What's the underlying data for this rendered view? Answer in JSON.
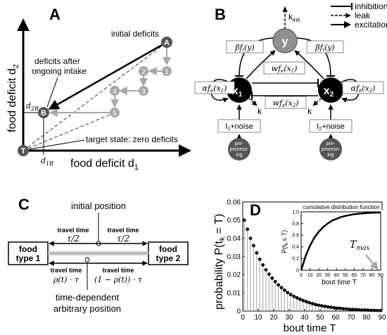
{
  "panels": {
    "A": {
      "label": "A",
      "y_axis": "food deficit d",
      "y_axis_sub": "2",
      "x_axis": "food deficit d",
      "x_axis_sub": "1",
      "initial_deficits": "initial deficits",
      "after_intake_1": "deficits after",
      "after_intake_2": "ongoing intake",
      "target_state": "target state: zero deficits",
      "point_A": "A",
      "point_B": "B",
      "point_T": "T",
      "d2B": "d",
      "d2B_sub": "2B",
      "d1B": "d",
      "d1B_sub": "1B",
      "steps": [
        "1",
        "2",
        "3",
        "4",
        "5"
      ]
    },
    "B": {
      "label": "B",
      "legend": [
        "inhibition",
        "leak",
        "excitation"
      ],
      "node_y": "y",
      "node_x1": "x",
      "node_x1_sub": "1",
      "node_x2": "x",
      "node_x2_sub": "2",
      "kinh": "k",
      "kinh_sub": "inh",
      "k_left": "k",
      "k_right": "k",
      "beta_left": "βf",
      "beta_left_arg": "(y)",
      "beta_right": "βf",
      "beta_right_arg": "(y)",
      "alpha_left": "αf",
      "alpha_left_arg": "(x",
      "alpha_right": "αf",
      "alpha_right_arg": "(x",
      "w_left": "wf",
      "w_left_arg": "(x",
      "w_right": "wf",
      "w_right_arg": "(x",
      "input1": "I",
      "input1_sub": "1",
      "input2": "I",
      "input2_sub": "2",
      "noise": "+noise",
      "preprocessing": [
        "pre-",
        "process-",
        "ing"
      ]
    },
    "C": {
      "label": "C",
      "initial_position": "initial position",
      "travel_time": "travel time",
      "tau_half": "τ/2",
      "food_type_1": [
        "food",
        "type 1"
      ],
      "food_type_2": [
        "food",
        "type 2"
      ],
      "rho_left": "ρ(t) · τ",
      "rho_right": "(1 − ρ(t)) · τ",
      "arbitrary_position": [
        "time-dependent",
        "arbitrary position"
      ]
    },
    "D": {
      "label": "D",
      "ylabel": "probability P(t",
      "ylabel_sub": "k",
      "ylabel_end": " = T)",
      "xlabel": "bout time T",
      "inset_title": "cumulative distribution function",
      "inset_ylabel": "P(t",
      "inset_ylabel_sub": "k",
      "inset_ylabel_end": " ≤ T)",
      "inset_xlabel": "bout time T",
      "tmax": "T",
      "tmax_sub": "max"
    }
  },
  "colors": {
    "dark_node": "#555555",
    "gray_step": "#a8a8a8",
    "stem": "#b0b0b0"
  },
  "chart_data": [
    {
      "type": "scatter",
      "title": "",
      "xlabel": "bout time T",
      "ylabel": "probability P(tk = T)",
      "xlim": [
        0,
        90
      ],
      "ylim": [
        0,
        0.06
      ],
      "xticks": [
        0,
        10,
        20,
        30,
        40,
        50,
        60,
        70,
        80,
        90
      ],
      "yticks": [
        0,
        0.01,
        0.02,
        0.03,
        0.04,
        0.05,
        0.06
      ],
      "x": [
        1,
        3,
        5,
        7,
        9,
        11,
        13,
        15,
        17,
        19,
        21,
        23,
        25,
        27,
        29,
        31,
        33,
        35,
        37,
        39,
        41,
        43,
        45,
        47,
        49,
        51,
        53,
        55,
        57,
        59,
        61,
        63,
        65,
        67,
        69,
        71,
        73,
        75,
        77,
        79,
        81,
        83,
        85,
        87,
        89,
        91
      ],
      "y": [
        0.05,
        0.045,
        0.04,
        0.036,
        0.032,
        0.0285,
        0.0254,
        0.0227,
        0.0203,
        0.0181,
        0.0162,
        0.0144,
        0.0129,
        0.0115,
        0.0102,
        0.0091,
        0.0081,
        0.0073,
        0.0065,
        0.0058,
        0.0052,
        0.0046,
        0.0041,
        0.0036,
        0.0032,
        0.0029,
        0.0026,
        0.0023,
        0.0021,
        0.0018,
        0.0016,
        0.0015,
        0.0013,
        0.0012,
        0.001,
        0.0009,
        0.0008,
        0.0007,
        0.0006,
        0.0006,
        0.0005,
        0.0004,
        0.0004,
        0.0003,
        0.0003,
        0.0003
      ]
    },
    {
      "type": "line",
      "title": "cumulative distribution function",
      "xlabel": "bout time T",
      "ylabel": "P(tk ≤ T)",
      "xlim": [
        0,
        90
      ],
      "ylim": [
        0,
        1.0
      ],
      "xticks": [
        0,
        10,
        20,
        30,
        40,
        50,
        60,
        70,
        80,
        90
      ],
      "yticks": [
        0,
        0.2,
        0.4,
        0.6,
        0.8,
        1.0
      ],
      "x": [
        0,
        5,
        10,
        15,
        20,
        25,
        30,
        35,
        40,
        45,
        50,
        60,
        70,
        80,
        90
      ],
      "y": [
        0,
        0.24,
        0.42,
        0.56,
        0.66,
        0.74,
        0.8,
        0.85,
        0.88,
        0.91,
        0.93,
        0.96,
        0.975,
        0.985,
        0.99
      ]
    }
  ]
}
